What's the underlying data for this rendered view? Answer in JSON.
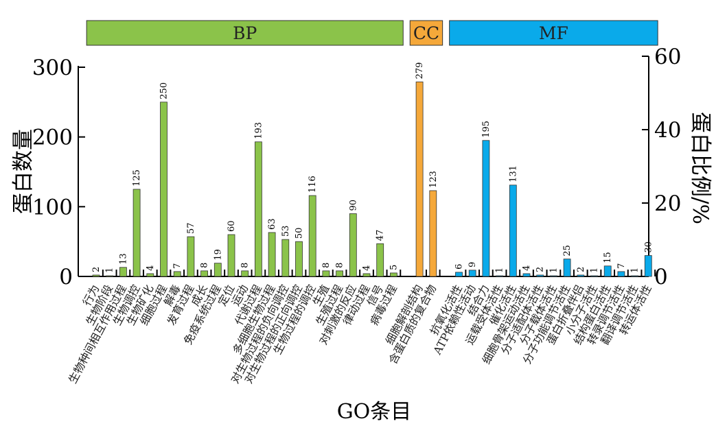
{
  "chart_data": {
    "type": "bar",
    "y_left_label": "蛋白数量",
    "y_right_label": "蛋白比例/%",
    "x_label": "GO条目",
    "y_left_range": [
      0,
      300
    ],
    "y_left_ticks": [
      0,
      100,
      200,
      300
    ],
    "y_right_range": [
      0,
      60
    ],
    "y_right_ticks": [
      0,
      20,
      40,
      60
    ],
    "grid": false,
    "group_colors": {
      "BP": "#8bc34a",
      "CC": "#f5a83a",
      "MF": "#0aaaea"
    },
    "groups": [
      {
        "label": "BP",
        "first": 0,
        "last": 22
      },
      {
        "label": "CC",
        "first": 23,
        "last": 24
      },
      {
        "label": "MF",
        "first": 25,
        "last": 39
      }
    ],
    "categories": [
      {
        "label": "行为",
        "value": 2,
        "group": "BP"
      },
      {
        "label": "生物阶段",
        "value": 1,
        "group": "BP"
      },
      {
        "label": "生物种间相互作用过程",
        "value": 13,
        "group": "BP"
      },
      {
        "label": "生物调控",
        "value": 125,
        "group": "BP"
      },
      {
        "label": "生物矿化",
        "value": 4,
        "group": "BP"
      },
      {
        "label": "细胞过程",
        "value": 250,
        "group": "BP"
      },
      {
        "label": "解毒",
        "value": 7,
        "group": "BP"
      },
      {
        "label": "发育过程",
        "value": 57,
        "group": "BP"
      },
      {
        "label": "成长",
        "value": 8,
        "group": "BP"
      },
      {
        "label": "免疫系统过程",
        "value": 19,
        "group": "BP"
      },
      {
        "label": "定位",
        "value": 60,
        "group": "BP"
      },
      {
        "label": "运动",
        "value": 8,
        "group": "BP"
      },
      {
        "label": "代谢过程",
        "value": 193,
        "group": "BP"
      },
      {
        "label": "多细胞生物过程",
        "value": 63,
        "group": "BP"
      },
      {
        "label": "对生物过程的负向调控",
        "value": 53,
        "group": "BP"
      },
      {
        "label": "对生物过程的正向调控",
        "value": 50,
        "group": "BP"
      },
      {
        "label": "生物过程的调控",
        "value": 116,
        "group": "BP"
      },
      {
        "label": "生殖",
        "value": 8,
        "group": "BP"
      },
      {
        "label": "生殖过程",
        "value": 8,
        "group": "BP"
      },
      {
        "label": "对刺激的反应",
        "value": 90,
        "group": "BP"
      },
      {
        "label": "律动过程",
        "value": 4,
        "group": "BP"
      },
      {
        "label": "信号",
        "value": 47,
        "group": "BP"
      },
      {
        "label": "病毒过程",
        "value": 5,
        "group": "BP"
      },
      {
        "label": "细胞解剖结构",
        "value": 279,
        "group": "CC"
      },
      {
        "label": "含蛋白质的复合物",
        "value": 123,
        "group": "CC"
      },
      {
        "label": "抗氧化活性",
        "value": 6,
        "group": "MF"
      },
      {
        "label": "ATP依赖性活动",
        "value": 9,
        "group": "MF"
      },
      {
        "label": "结合力",
        "value": 195,
        "group": "MF"
      },
      {
        "label": "运载受体活性",
        "value": 1,
        "group": "MF"
      },
      {
        "label": "催化活性",
        "value": 131,
        "group": "MF"
      },
      {
        "label": "细胞骨架运动活性",
        "value": 4,
        "group": "MF"
      },
      {
        "label": "分子适配体活性",
        "value": 2,
        "group": "MF"
      },
      {
        "label": "分子载体活性",
        "value": 1,
        "group": "MF"
      },
      {
        "label": "分子功能调节活性",
        "value": 25,
        "group": "MF"
      },
      {
        "label": "蛋白折叠伴侣",
        "value": 2,
        "group": "MF"
      },
      {
        "label": "小分子活性",
        "value": 1,
        "group": "MF"
      },
      {
        "label": "结构蛋白活性",
        "value": 15,
        "group": "MF"
      },
      {
        "label": "转录调节活性",
        "value": 7,
        "group": "MF"
      },
      {
        "label": "翻译调节活性",
        "value": 1,
        "group": "MF"
      },
      {
        "label": "转运体活性",
        "value": 30,
        "group": "MF"
      }
    ]
  }
}
